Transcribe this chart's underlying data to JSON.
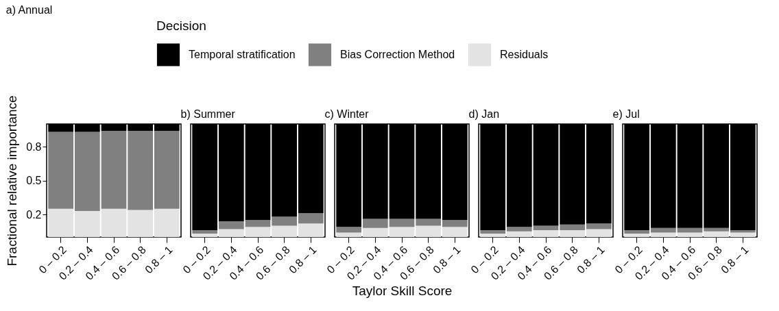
{
  "chart_data": [
    {
      "type": "bar",
      "title": "a) Annual",
      "ylabel": "Fractional relative importance",
      "legend_title": "Decision",
      "legend": "top",
      "stacked": true,
      "categories": [
        "0 – 0.2",
        "0.2 – 0.4",
        "0.4 – 0.6",
        "0.6 – 0.8",
        "0.8 – 1"
      ],
      "ylim": [
        0,
        1
      ],
      "yticks": [
        0.2,
        0.5,
        0.8
      ],
      "series": [
        {
          "name": "Residuals",
          "color": "#e3e3e3",
          "values": [
            0.25,
            0.23,
            0.25,
            0.24,
            0.25
          ]
        },
        {
          "name": "Bias Correction Method",
          "color": "#808080",
          "values": [
            0.68,
            0.7,
            0.69,
            0.7,
            0.69
          ]
        },
        {
          "name": "Temporal stratification",
          "color": "#000000",
          "values": [
            0.07,
            0.07,
            0.06,
            0.06,
            0.06
          ]
        }
      ]
    },
    {
      "type": "bar",
      "title": "b) Summer",
      "stacked": true,
      "tick_labels": "x",
      "categories": [
        "0 – 0.2",
        "0.2 – 0.4",
        "0.4 – 0.6",
        "0.6 – 0.8",
        "0.8 – 1"
      ],
      "ylim": [
        0,
        1
      ],
      "series": [
        {
          "color": "#e3e3e3",
          "values": [
            0.03,
            0.07,
            0.09,
            0.1,
            0.12
          ]
        },
        {
          "color": "#808080",
          "values": [
            0.03,
            0.07,
            0.06,
            0.08,
            0.09
          ]
        },
        {
          "color": "#000000",
          "values": [
            0.94,
            0.86,
            0.85,
            0.82,
            0.79
          ]
        }
      ]
    },
    {
      "type": "bar",
      "title": "c) Winter",
      "xlabel": "Taylor Skill Score",
      "stacked": true,
      "tick_labels": "x",
      "categories": [
        "0 – 0.2",
        "0.2 – 0.4",
        "0.4 – 0.6",
        "0.6 – 0.8",
        "0.8 – 1"
      ],
      "ylim": [
        0,
        1
      ],
      "series": [
        {
          "color": "#e3e3e3",
          "values": [
            0.04,
            0.08,
            0.09,
            0.1,
            0.09
          ]
        },
        {
          "color": "#808080",
          "values": [
            0.05,
            0.08,
            0.07,
            0.06,
            0.06
          ]
        },
        {
          "color": "#000000",
          "values": [
            0.91,
            0.84,
            0.84,
            0.84,
            0.85
          ]
        }
      ]
    },
    {
      "type": "bar",
      "title": "d) Jan",
      "stacked": true,
      "tick_labels": "x",
      "categories": [
        "0 – 0.2",
        "0.2 – 0.4",
        "0.4 – 0.6",
        "0.6 – 0.8",
        "0.8 – 1"
      ],
      "ylim": [
        0,
        1
      ],
      "series": [
        {
          "color": "#e3e3e3",
          "values": [
            0.03,
            0.05,
            0.06,
            0.06,
            0.07
          ]
        },
        {
          "color": "#808080",
          "values": [
            0.03,
            0.04,
            0.04,
            0.05,
            0.05
          ]
        },
        {
          "color": "#000000",
          "values": [
            0.94,
            0.91,
            0.9,
            0.89,
            0.88
          ]
        }
      ]
    },
    {
      "type": "bar",
      "title": "e) Jul",
      "stacked": true,
      "tick_labels": "x",
      "categories": [
        "0 – 0.2",
        "0.2 – 0.4",
        "0.4 – 0.6",
        "0.6 – 0.8",
        "0.8 – 1"
      ],
      "ylim": [
        0,
        1
      ],
      "series": [
        {
          "color": "#e3e3e3",
          "values": [
            0.03,
            0.04,
            0.04,
            0.05,
            0.04
          ]
        },
        {
          "color": "#808080",
          "values": [
            0.03,
            0.04,
            0.04,
            0.03,
            0.02
          ]
        },
        {
          "color": "#000000",
          "values": [
            0.94,
            0.92,
            0.92,
            0.92,
            0.94
          ]
        }
      ]
    }
  ]
}
